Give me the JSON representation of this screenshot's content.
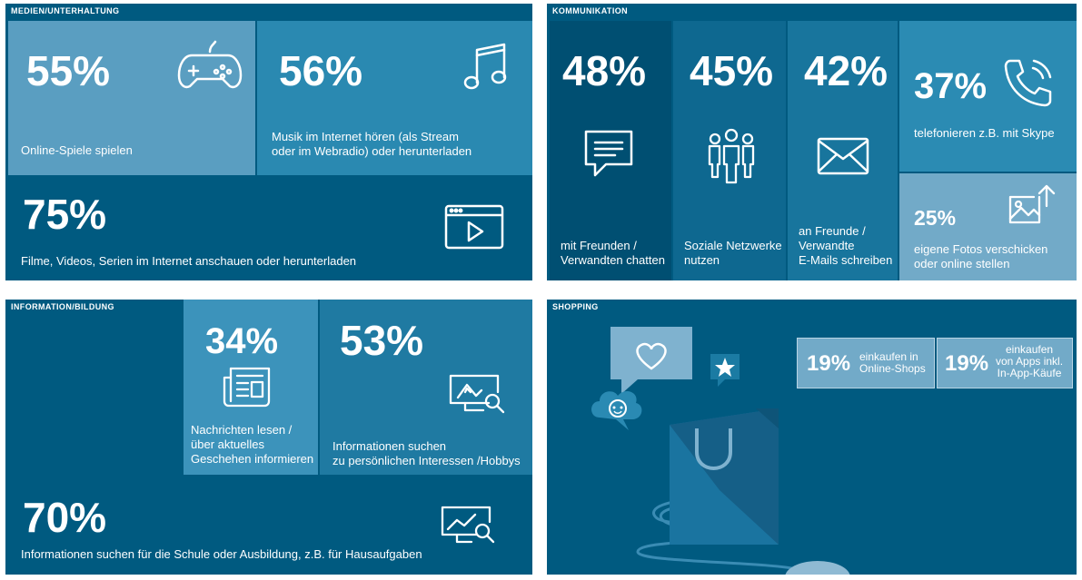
{
  "medien": {
    "title": "MEDIEN/UNTERHALTUNG",
    "items": [
      {
        "pct": "55%",
        "label": "Online-Spiele spielen",
        "icon": "gamepad-icon"
      },
      {
        "pct": "56%",
        "label": "Musik im Internet hören (als Stream\noder im Webradio) oder herunterladen",
        "icon": "music-note-icon"
      },
      {
        "pct": "75%",
        "label": "Filme, Videos, Serien im Internet anschauen oder herunterladen",
        "icon": "video-player-icon"
      }
    ]
  },
  "kommunikation": {
    "title": "KOMMUNIKATION",
    "items": [
      {
        "pct": "48%",
        "label": "mit Freunden /\nVerwandten chatten",
        "icon": "chat-bubble-icon"
      },
      {
        "pct": "45%",
        "label": "Soziale Netzwerke\nnutzen",
        "icon": "people-icon"
      },
      {
        "pct": "42%",
        "label": "an Freunde /\nVerwandte\nE-Mails schreiben",
        "icon": "envelope-icon"
      },
      {
        "pct": "37%",
        "label": "telefonieren z.B. mit Skype",
        "icon": "phone-icon"
      },
      {
        "pct": "25%",
        "label": "eigene Fotos verschicken\noder online stellen",
        "icon": "photo-upload-icon"
      }
    ]
  },
  "information": {
    "title": "INFORMATION/BILDUNG",
    "items": [
      {
        "pct": "34%",
        "label": "Nachrichten lesen /\nüber aktuelles\nGeschehen informieren",
        "icon": "newspaper-icon"
      },
      {
        "pct": "53%",
        "label": "Informationen suchen\nzu persönlichen Interessen /Hobbys",
        "icon": "monitor-search-icon"
      },
      {
        "pct": "70%",
        "label": "Informationen suchen für die Schule oder Ausbildung, z.B. für Hausaufgaben",
        "icon": "chart-search-icon"
      }
    ]
  },
  "shopping": {
    "title": "SHOPPING",
    "items": [
      {
        "pct": "19%",
        "label": "einkaufen in\nOnline-Shops"
      },
      {
        "pct": "19%",
        "label": "einkaufen\nvon Apps inkl.\nIn-App-Käufe"
      }
    ]
  }
}
